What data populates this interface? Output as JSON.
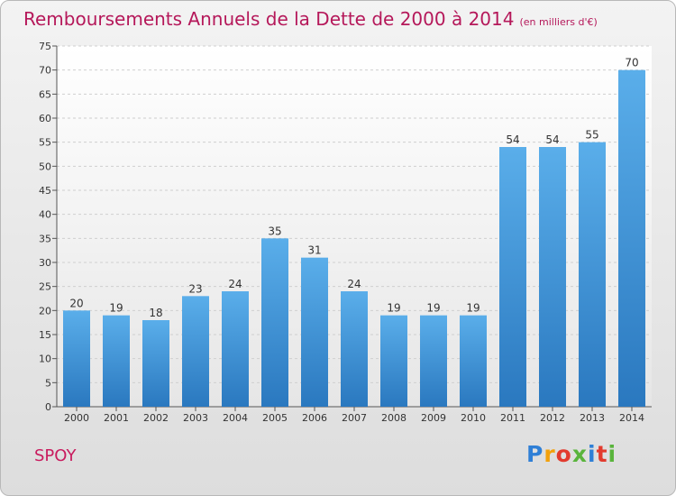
{
  "chart_data": {
    "type": "bar",
    "title": "Remboursements Annuels de la Dette de 2000 à 2014",
    "subtitle": "(en milliers d'€)",
    "categories": [
      "2000",
      "2001",
      "2002",
      "2003",
      "2004",
      "2005",
      "2006",
      "2007",
      "2008",
      "2009",
      "2010",
      "2011",
      "2012",
      "2013",
      "2014"
    ],
    "values": [
      20,
      19,
      18,
      23,
      24,
      35,
      31,
      24,
      19,
      19,
      19,
      54,
      54,
      55,
      70
    ],
    "ylim": [
      0,
      75
    ],
    "yticks": [
      0,
      5,
      10,
      15,
      20,
      25,
      30,
      35,
      40,
      45,
      50,
      55,
      60,
      65,
      70,
      75
    ],
    "grid": true,
    "bar_color": "#3c8fd8"
  },
  "commune": "SPOY",
  "brand": {
    "letters": [
      "P",
      "r",
      "o",
      "x",
      "i",
      "t",
      "i"
    ],
    "colors": [
      "#2f7fd6",
      "#f2a10c",
      "#e23b2e",
      "#59b43c",
      "#2f7fd6",
      "#e23b2e",
      "#59b43c"
    ]
  }
}
